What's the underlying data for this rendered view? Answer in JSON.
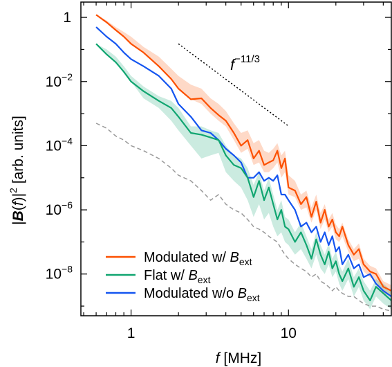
{
  "chart_data": {
    "type": "line",
    "title": "",
    "xlabel": {
      "var": "f",
      "unit": "[MHz]"
    },
    "ylabel": {
      "pre": "|",
      "bold": "B",
      "mid": "(",
      "var": "f",
      "post": ")|",
      "sup": "2",
      "unit": " [arb. units]"
    },
    "xscale": "log",
    "yscale": "log",
    "xlim": [
      0.48,
      45
    ],
    "ylim": [
      5e-10,
      3
    ],
    "x_ticks": [
      {
        "value": 1,
        "label": "1"
      },
      {
        "value": 10,
        "label": "10"
      }
    ],
    "y_ticks": [
      {
        "value": 1,
        "label": "1"
      },
      {
        "value": 0.01,
        "base": "10",
        "exp": "−2"
      },
      {
        "value": 0.0001,
        "base": "10",
        "exp": "−4"
      },
      {
        "value": 1e-06,
        "base": "10",
        "exp": "−6"
      },
      {
        "value": 1e-08,
        "base": "10",
        "exp": "−8"
      }
    ],
    "grid": false,
    "legend_position": "bottom-left",
    "annotation": {
      "label_base": "f",
      "label_exp": "−11/3",
      "slope": -3.6667,
      "x_start": 2.0,
      "x_end": 10.0,
      "y_start": 0.15
    },
    "series": [
      {
        "name": "Modulated w/ ",
        "name_var": "B",
        "name_sub": "ext",
        "color": "#fc5000",
        "band": true,
        "x": [
          0.6,
          0.7,
          0.8,
          0.9,
          1.0,
          1.2,
          1.5,
          1.8,
          2.0,
          2.4,
          2.8,
          3.2,
          3.6,
          4.0,
          4.5,
          5.0,
          5.5,
          6.0,
          6.5,
          7.0,
          7.5,
          8.0,
          8.5,
          9.0,
          9.5,
          10.0,
          11.0,
          12.0,
          13.0,
          14.0,
          15.0,
          16.0,
          17.0,
          18.0,
          19.0,
          20.0,
          21.0,
          22.0,
          24.0,
          26.0,
          28.0,
          30.0,
          33.0,
          36.0,
          40.0,
          45.0
        ],
        "y": [
          1.2,
          0.7,
          0.4,
          0.25,
          0.15,
          0.08,
          0.03,
          0.012,
          0.006,
          0.0028,
          0.003,
          0.0015,
          0.0009,
          0.0006,
          0.00025,
          0.0001,
          0.00015,
          4e-05,
          7e-05,
          2.5e-05,
          3e-05,
          3.5e-05,
          7e-05,
          2e-05,
          4e-05,
          5e-06,
          4e-06,
          1.5e-06,
          2.5e-06,
          6e-07,
          1.8e-06,
          4e-07,
          1e-06,
          3e-07,
          5e-07,
          2e-07,
          1.5e-07,
          3e-07,
          8e-08,
          4e-08,
          6e-08,
          2e-08,
          1.2e-08,
          1e-08,
          4e-09,
          3e-09
        ],
        "y_low": [
          1.2,
          0.7,
          0.4,
          0.25,
          0.15,
          0.08,
          0.03,
          0.012,
          0.006,
          0.0028,
          0.002,
          0.001,
          0.0006,
          0.0004,
          0.00015,
          6e-05,
          8e-05,
          2.5e-05,
          3e-05,
          1.5e-05,
          1.5e-05,
          2e-05,
          3e-05,
          1e-05,
          1.5e-05,
          3e-06,
          2.5e-06,
          1e-06,
          1.2e-06,
          4e-07,
          1e-06,
          2.5e-07,
          5e-07,
          2e-07,
          3e-07,
          1.2e-07,
          1e-07,
          1.5e-07,
          5e-08,
          2.5e-08,
          3e-08,
          1.2e-08,
          8e-09,
          6e-09,
          2.5e-09,
          2e-09
        ],
        "y_high": [
          1.2,
          0.8,
          0.5,
          0.35,
          0.25,
          0.12,
          0.06,
          0.025,
          0.015,
          0.008,
          0.006,
          0.003,
          0.002,
          0.0012,
          0.0005,
          0.00025,
          0.0003,
          0.00012,
          0.00015,
          7e-05,
          6e-05,
          8e-05,
          0.00012,
          5e-05,
          7e-05,
          1.2e-05,
          8e-06,
          3e-06,
          4e-06,
          1.2e-06,
          3e-06,
          8e-07,
          1.5e-06,
          5e-07,
          8e-07,
          3.5e-07,
          2.5e-07,
          4e-07,
          1.2e-07,
          6e-08,
          9e-08,
          3e-08,
          1.8e-08,
          1.5e-08,
          6e-09,
          4.5e-09
        ]
      },
      {
        "name": "Flat w/ ",
        "name_var": "B",
        "name_sub": "ext",
        "color": "#10a570",
        "band": true,
        "x": [
          0.6,
          0.7,
          0.8,
          0.9,
          1.0,
          1.2,
          1.5,
          1.8,
          2.0,
          2.4,
          2.8,
          3.2,
          3.6,
          4.0,
          4.5,
          5.0,
          5.5,
          6.0,
          6.5,
          7.0,
          7.5,
          8.0,
          8.5,
          9.0,
          9.5,
          10.0,
          11.0,
          12.0,
          13.0,
          14.0,
          15.0,
          16.0,
          17.0,
          18.0,
          19.0,
          20.0,
          21.0,
          22.0,
          24.0,
          26.0,
          28.0,
          30.0,
          33.0,
          36.0,
          40.0,
          45.0
        ],
        "y": [
          0.15,
          0.07,
          0.04,
          0.02,
          0.01,
          0.005,
          0.0025,
          0.0015,
          0.0008,
          0.00025,
          0.00022,
          0.00018,
          0.00015,
          5e-05,
          2.5e-05,
          2e-05,
          1e-05,
          2.5e-06,
          8e-06,
          2e-06,
          5e-06,
          1.5e-06,
          5e-07,
          1e-06,
          3e-07,
          2.5e-07,
          1e-07,
          2e-07,
          8e-08,
          3e-08,
          1.2e-07,
          4e-08,
          2e-08,
          5e-08,
          1.5e-08,
          2.5e-08,
          1e-08,
          6e-09,
          1.5e-08,
          4e-09,
          8e-09,
          3e-09,
          1.5e-09,
          4e-09,
          2.5e-09,
          1.5e-09
        ],
        "y_low": [
          0.15,
          0.07,
          0.04,
          0.02,
          0.01,
          0.003,
          0.0015,
          0.0006,
          0.0003,
          0.0001,
          4e-05,
          5e-05,
          6e-05,
          1.5e-05,
          8e-06,
          5e-06,
          2e-06,
          6e-07,
          1.5e-06,
          5e-07,
          8e-07,
          3e-07,
          1.5e-07,
          2e-07,
          1e-07,
          8e-08,
          4e-08,
          6e-08,
          3e-08,
          1.5e-08,
          4e-08,
          1.5e-08,
          1e-08,
          2e-08,
          8e-09,
          1.2e-08,
          5e-09,
          3e-09,
          7e-09,
          2e-09,
          4e-09,
          1.5e-09,
          8e-10,
          2e-09,
          1.2e-09,
          8e-10
        ],
        "y_high": [
          0.15,
          0.1,
          0.06,
          0.03,
          0.015,
          0.007,
          0.0035,
          0.0025,
          0.0015,
          0.0004,
          0.0004,
          0.0003,
          0.00025,
          0.0001,
          5e-05,
          4e-05,
          2e-05,
          6e-06,
          1.5e-05,
          4e-06,
          1e-05,
          3e-06,
          1e-06,
          2e-06,
          6e-07,
          5e-07,
          2e-07,
          4e-07,
          1.5e-07,
          6e-08,
          2e-07,
          8e-08,
          4e-08,
          9e-08,
          3e-08,
          5e-08,
          2e-08,
          1.2e-08,
          3e-08,
          8e-09,
          1.5e-08,
          6e-09,
          3e-09,
          7e-09,
          5e-09,
          3e-09
        ]
      },
      {
        "name": "Modulated w/o ",
        "name_var": "B",
        "name_sub": "ext",
        "color": "#1455f0",
        "band": false,
        "x": [
          0.6,
          0.7,
          0.8,
          0.9,
          1.0,
          1.2,
          1.5,
          1.8,
          2.0,
          2.4,
          2.8,
          3.2,
          3.6,
          4.0,
          4.5,
          5.0,
          5.5,
          6.0,
          6.5,
          7.0,
          7.5,
          8.0,
          8.5,
          9.0,
          9.5,
          10.0,
          11.0,
          12.0,
          13.0,
          14.0,
          15.0,
          16.0,
          17.0,
          18.0,
          19.0,
          20.0,
          21.0,
          22.0,
          24.0,
          26.0,
          28.0,
          30.0,
          33.0,
          36.0,
          40.0,
          45.0
        ],
        "y": [
          0.5,
          0.25,
          0.15,
          0.08,
          0.05,
          0.03,
          0.015,
          0.006,
          0.002,
          0.0008,
          0.0003,
          0.00025,
          0.00015,
          8e-05,
          5e-05,
          3e-05,
          1e-05,
          1e-05,
          1.5e-05,
          8e-06,
          1e-05,
          8e-06,
          1.2e-05,
          3e-06,
          3e-06,
          2e-06,
          1e-06,
          3e-07,
          4e-07,
          2e-07,
          3e-07,
          1e-07,
          2e-07,
          8e-08,
          1.5e-07,
          5e-08,
          7e-08,
          2e-08,
          4e-08,
          1.5e-08,
          2e-08,
          8e-09,
          1e-08,
          5e-09,
          3e-09,
          2e-09
        ]
      },
      {
        "name": "",
        "color": "#9a9a9a",
        "dashed": true,
        "band": false,
        "x": [
          0.6,
          0.7,
          0.8,
          0.9,
          1.0,
          1.2,
          1.5,
          1.8,
          2.0,
          2.4,
          2.8,
          3.2,
          3.6,
          4.0,
          4.5,
          5.0,
          5.5,
          6.0,
          6.5,
          7.0,
          7.5,
          8.0,
          8.5,
          9.0,
          9.5,
          10.0,
          11.0,
          12.0,
          13.0,
          14.0,
          15.0,
          16.0,
          17.0,
          18.0,
          19.0,
          20.0,
          21.0,
          22.0,
          24.0,
          26.0,
          28.0,
          30.0,
          33.0,
          36.0,
          40.0,
          45.0
        ],
        "y": [
          0.0005,
          0.00035,
          0.0002,
          0.00015,
          0.0001,
          7e-05,
          4e-05,
          2e-05,
          1.2e-05,
          8e-06,
          4e-06,
          2e-06,
          3e-06,
          1.5e-06,
          1e-06,
          8e-07,
          5e-07,
          3e-07,
          2.5e-07,
          2e-07,
          1.5e-07,
          1.2e-07,
          1e-07,
          6e-08,
          4e-08,
          3e-08,
          2e-08,
          1.5e-08,
          1.2e-08,
          8e-09,
          1e-08,
          6e-09,
          5e-09,
          4e-09,
          3e-09,
          4e-09,
          3e-09,
          2.5e-09,
          2e-09,
          2e-09,
          1.5e-09,
          1.2e-09,
          1e-09,
          1e-09,
          8e-10,
          7e-10
        ]
      }
    ]
  }
}
